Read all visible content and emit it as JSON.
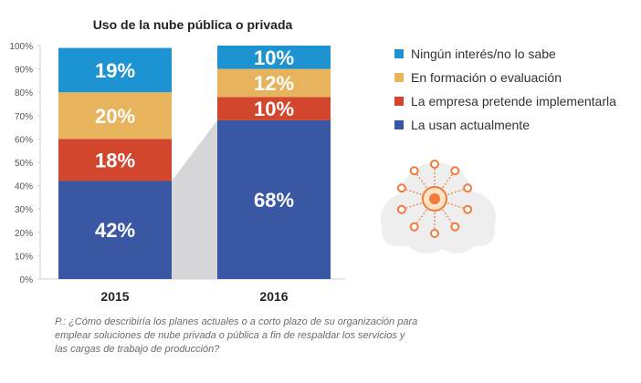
{
  "chart_data": {
    "type": "bar",
    "stacked": true,
    "title": "Uso de la nube pública o privada",
    "categories": [
      "2015",
      "2016"
    ],
    "series": [
      {
        "name": "La usan actualmente",
        "color": "#3a57a4",
        "values": [
          42,
          68
        ],
        "labels": [
          "42%",
          "68%"
        ]
      },
      {
        "name": "La empresa pretende implementarla",
        "color": "#d2462e",
        "values": [
          18,
          10
        ],
        "labels": [
          "18%",
          "10%"
        ]
      },
      {
        "name": "En formación o evaluación",
        "color": "#e7b35c",
        "values": [
          20,
          12
        ],
        "labels": [
          "20%",
          "12%"
        ]
      },
      {
        "name": "Ningún interés/no lo sabe",
        "color": "#1e93d2",
        "values": [
          19,
          10
        ],
        "labels": [
          "19%",
          "10%"
        ]
      }
    ],
    "yticks": [
      "0%",
      "10%",
      "20%",
      "30%",
      "40%",
      "50%",
      "60%",
      "70%",
      "80%",
      "90%",
      "100%"
    ],
    "ylim": [
      0,
      100
    ],
    "legend_position": "right",
    "legend_order": [
      "Ningún interés/no lo sabe",
      "En formación o evaluación",
      "La empresa pretende implementarla",
      "La usan actualmente"
    ],
    "connector_color": "#d6d5d7"
  },
  "note": "P.: ¿Cómo describiría los planes actuales o a corto plazo de su organización para emplear soluciones de nube privada o pública a fin de respaldar los servicios y las cargas de trabajo de producción?",
  "illustration": {
    "icon": "cloud-network-icon",
    "cloud_color": "#efeeef",
    "node_color": "#f07b3c",
    "center_color": "#f9c243"
  }
}
